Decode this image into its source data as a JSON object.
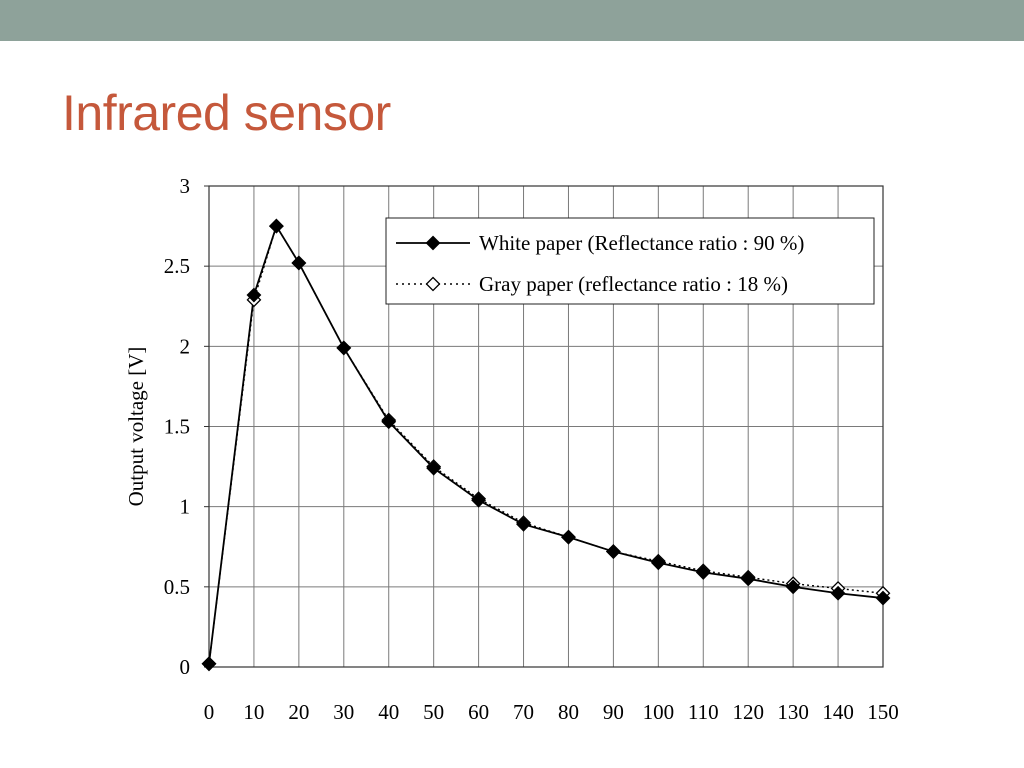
{
  "slide": {
    "title": "Infrared sensor",
    "band_color": "#8ea29a",
    "title_color": "#c5583b"
  },
  "chart_data": {
    "type": "line",
    "title": "",
    "xlabel": "",
    "ylabel": "Output voltage [V]",
    "xlim": [
      0,
      150
    ],
    "ylim": [
      0,
      3
    ],
    "xticks": [
      0,
      10,
      20,
      30,
      40,
      50,
      60,
      70,
      80,
      90,
      100,
      110,
      120,
      130,
      140,
      150
    ],
    "yticks": [
      0,
      0.5,
      1,
      1.5,
      2,
      2.5,
      3
    ],
    "ytick_labels": [
      "0",
      "0.5",
      "1",
      "1.5",
      "2",
      "2.5",
      "3"
    ],
    "grid": true,
    "legend_position": "top-right",
    "series": [
      {
        "name": "White paper (Reflectance ratio : 90 %)",
        "line": "solid",
        "marker": "filled-diamond",
        "x": [
          0,
          10,
          15,
          20,
          30,
          40,
          50,
          60,
          70,
          80,
          90,
          100,
          110,
          120,
          130,
          140,
          150
        ],
        "y": [
          0.02,
          2.32,
          2.75,
          2.52,
          1.99,
          1.53,
          1.24,
          1.04,
          0.89,
          0.81,
          0.72,
          0.65,
          0.59,
          0.55,
          0.5,
          0.46,
          0.43
        ]
      },
      {
        "name": "Gray paper (reflectance ratio : 18 %)",
        "line": "dotted",
        "marker": "open-diamond",
        "x": [
          0,
          10,
          15,
          20,
          30,
          40,
          50,
          60,
          70,
          80,
          90,
          100,
          110,
          120,
          130,
          140,
          150
        ],
        "y": [
          0.02,
          2.29,
          2.75,
          2.52,
          1.99,
          1.54,
          1.25,
          1.05,
          0.9,
          0.81,
          0.72,
          0.66,
          0.6,
          0.56,
          0.52,
          0.49,
          0.46
        ]
      }
    ]
  }
}
